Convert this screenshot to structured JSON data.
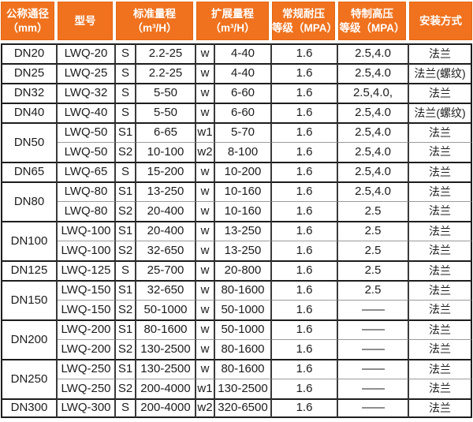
{
  "colors": {
    "header_bg": "#f0721e",
    "header_text": "#ffffff",
    "body_text": "#1c1c1c",
    "border_dark": "#1d1d1d",
    "border_light": "#9a9a9a"
  },
  "table": {
    "columns": [
      "公称通径\n（mm）",
      "型号",
      "标准量程\n（m³/H）",
      "扩展量程\n（m³/H）",
      "常规耐压\n等级（MPA）",
      "特制高压\n等级（MPA）",
      "安装方式"
    ],
    "rows": [
      {
        "dn": "DN20",
        "dn_rowspan": 1,
        "group_start": true,
        "model": "LWQ-20",
        "std_code": "S",
        "std_range": "2.2-25",
        "ext_code": "w",
        "ext_range": "4-40",
        "normal_mpa": "1.6",
        "high_mpa": "2.5,4.0",
        "install": "法兰"
      },
      {
        "dn": "DN25",
        "dn_rowspan": 1,
        "group_start": true,
        "model": "LWQ-25",
        "std_code": "S",
        "std_range": "2.2-25",
        "ext_code": "w",
        "ext_range": "4-40",
        "normal_mpa": "1.6",
        "high_mpa": "2.5,4.0",
        "install": "法兰(螺纹)"
      },
      {
        "dn": "DN32",
        "dn_rowspan": 1,
        "group_start": true,
        "model": "LWQ-32",
        "std_code": "S",
        "std_range": "5-50",
        "ext_code": "w",
        "ext_range": "6-60",
        "normal_mpa": "1.6",
        "high_mpa": "2.5,4.0,",
        "install": "法兰"
      },
      {
        "dn": "DN40",
        "dn_rowspan": 1,
        "group_start": true,
        "model": "LWQ-40",
        "std_code": "S",
        "std_range": "5-50",
        "ext_code": "w",
        "ext_range": "6-60",
        "normal_mpa": "1.6",
        "high_mpa": "2.5,4.0",
        "install": "法兰(螺纹)"
      },
      {
        "dn": "DN50",
        "dn_rowspan": 2,
        "group_start": true,
        "model": "LWQ-50",
        "std_code": "S1",
        "std_range": "6-65",
        "ext_code": "w1",
        "ext_range": "5-70",
        "normal_mpa": "1.6",
        "high_mpa": "2.5,4.0",
        "install": "法兰"
      },
      {
        "dn": null,
        "dn_rowspan": 0,
        "group_start": false,
        "model": "LWQ-50",
        "std_code": "S2",
        "std_range": "10-100",
        "ext_code": "w2",
        "ext_range": "8-100",
        "normal_mpa": "1.6",
        "high_mpa": "2.5,4.0",
        "install": "法兰"
      },
      {
        "dn": "DN65",
        "dn_rowspan": 1,
        "group_start": true,
        "model": "LWQ-65",
        "std_code": "S",
        "std_range": "15-200",
        "ext_code": "w",
        "ext_range": "10-200",
        "normal_mpa": "1.6",
        "high_mpa": "2.5,4.0",
        "install": "法兰"
      },
      {
        "dn": "DN80",
        "dn_rowspan": 2,
        "group_start": true,
        "model": "LWQ-80",
        "std_code": "S1",
        "std_range": "13-250",
        "ext_code": "w",
        "ext_range": "10-160",
        "normal_mpa": "1.6",
        "high_mpa": "2.5,4.0",
        "install": "法兰"
      },
      {
        "dn": null,
        "dn_rowspan": 0,
        "group_start": false,
        "model": "LWQ-80",
        "std_code": "S2",
        "std_range": "20-400",
        "ext_code": "w",
        "ext_range": "10-160",
        "normal_mpa": "1.6",
        "high_mpa": "2.5",
        "install": "法兰"
      },
      {
        "dn": "DN100",
        "dn_rowspan": 2,
        "group_start": true,
        "model": "LWQ-100",
        "std_code": "S1",
        "std_range": "20-400",
        "ext_code": "w",
        "ext_range": "13-250",
        "normal_mpa": "1.6",
        "high_mpa": "2.5",
        "install": "法兰"
      },
      {
        "dn": null,
        "dn_rowspan": 0,
        "group_start": false,
        "model": "LWQ-100",
        "std_code": "S2",
        "std_range": "32-650",
        "ext_code": "w",
        "ext_range": "13-250",
        "normal_mpa": "1.6",
        "high_mpa": "2.5",
        "install": "法兰"
      },
      {
        "dn": "DN125",
        "dn_rowspan": 1,
        "group_start": true,
        "model": "LWQ-125",
        "std_code": "S",
        "std_range": "25-700",
        "ext_code": "w",
        "ext_range": "20-800",
        "normal_mpa": "1.6",
        "high_mpa": "2.5",
        "install": "法兰"
      },
      {
        "dn": "DN150",
        "dn_rowspan": 2,
        "group_start": true,
        "model": "LWQ-150",
        "std_code": "S1",
        "std_range": "32-650",
        "ext_code": "w",
        "ext_range": "80-1600",
        "normal_mpa": "1.6",
        "high_mpa": "2.5",
        "install": "法兰"
      },
      {
        "dn": null,
        "dn_rowspan": 0,
        "group_start": false,
        "model": "LWQ-150",
        "std_code": "S2",
        "std_range": "50-1000",
        "ext_code": "w",
        "ext_range": "50-1000",
        "normal_mpa": "1.6",
        "high_mpa": "——",
        "install": "法兰"
      },
      {
        "dn": "DN200",
        "dn_rowspan": 2,
        "group_start": true,
        "model": "LWQ-200",
        "std_code": "S1",
        "std_range": "80-1600",
        "ext_code": "w",
        "ext_range": "50-1000",
        "normal_mpa": "1.6",
        "high_mpa": "——",
        "install": "法兰"
      },
      {
        "dn": null,
        "dn_rowspan": 0,
        "group_start": false,
        "model": "LWQ-200",
        "std_code": "S2",
        "std_range": "130-2500",
        "ext_code": "w",
        "ext_range": "80-1600",
        "normal_mpa": "1.6",
        "high_mpa": "——",
        "install": "法兰"
      },
      {
        "dn": "DN250",
        "dn_rowspan": 2,
        "group_start": true,
        "model": "LWQ-250",
        "std_code": "S1",
        "std_range": "130-2500",
        "ext_code": "w",
        "ext_range": "80-1600",
        "normal_mpa": "1.6",
        "high_mpa": "——",
        "install": "法兰"
      },
      {
        "dn": null,
        "dn_rowspan": 0,
        "group_start": false,
        "model": "LWQ-250",
        "std_code": "S2",
        "std_range": "200-4000",
        "ext_code": "w1",
        "ext_range": "130-2500",
        "normal_mpa": "1.6",
        "high_mpa": "——",
        "install": "法兰"
      },
      {
        "dn": "DN300",
        "dn_rowspan": 1,
        "group_start": true,
        "model": "LWQ-300",
        "std_code": "S",
        "std_range": "200-4000",
        "ext_code": "w2",
        "ext_range": "320-6500",
        "normal_mpa": "1.6",
        "high_mpa": "——",
        "install": "法兰"
      }
    ]
  }
}
